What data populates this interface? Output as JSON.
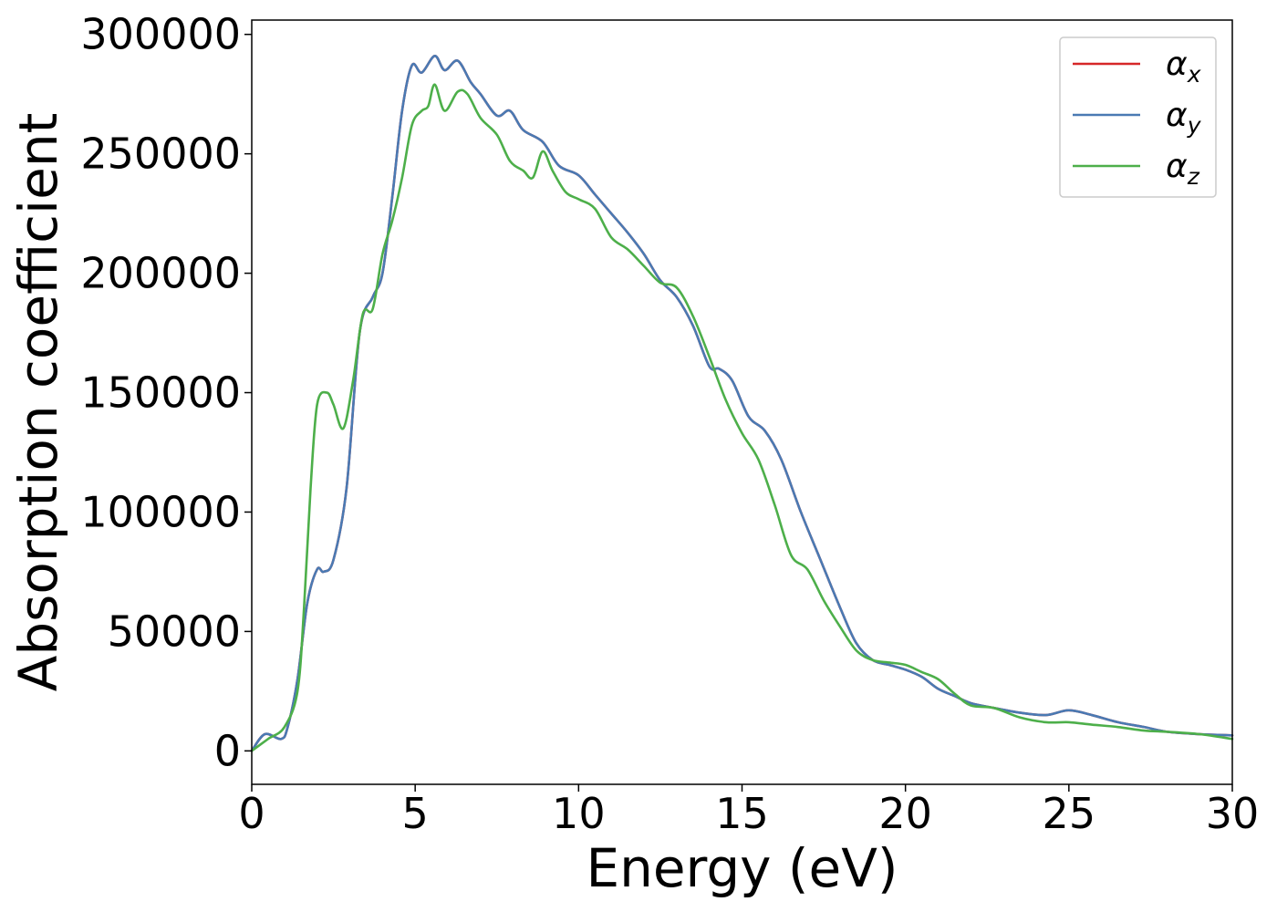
{
  "chart_data": {
    "type": "line",
    "xlabel": "Energy (eV)",
    "ylabel": "Absorption coefficient",
    "xlim": [
      0,
      30
    ],
    "ylim": [
      -14000,
      306000
    ],
    "xticks": [
      0,
      5,
      10,
      15,
      20,
      25,
      30
    ],
    "yticks": [
      0,
      50000,
      100000,
      150000,
      200000,
      250000,
      300000
    ],
    "grid": false,
    "legend_position": "top-right",
    "series": [
      {
        "name": "α",
        "sub": "x",
        "color": "#d62728",
        "x": [
          0,
          0.4,
          0.9,
          1.1,
          1.4,
          1.7,
          2.0,
          2.2,
          2.5,
          2.9,
          3.3,
          3.7,
          4.0,
          4.3,
          4.6,
          4.9,
          5.2,
          5.6,
          5.9,
          6.3,
          6.7,
          7.0,
          7.5,
          7.9,
          8.3,
          8.9,
          9.4,
          10.0,
          10.5,
          11.0,
          11.5,
          12.0,
          12.5,
          13.0,
          13.5,
          14.0,
          14.3,
          14.7,
          15.2,
          15.7,
          16.2,
          16.8,
          17.4,
          18.0,
          18.5,
          19.0,
          19.5,
          20.0,
          20.5,
          21.0,
          21.5,
          22.0,
          22.7,
          23.5,
          24.3,
          25.0,
          25.7,
          26.5,
          27.3,
          28.0,
          29.0,
          30.0
        ],
        "y": [
          0,
          7000,
          5000,
          10000,
          30000,
          62000,
          76000,
          75000,
          80000,
          110000,
          175000,
          190000,
          200000,
          232000,
          268000,
          287000,
          284000,
          291000,
          285000,
          289000,
          280000,
          275000,
          266000,
          268000,
          260000,
          255000,
          245000,
          241000,
          233000,
          225000,
          217000,
          208000,
          197000,
          190000,
          178000,
          161000,
          160000,
          155000,
          140000,
          134000,
          122000,
          100000,
          80000,
          60000,
          45000,
          38000,
          36000,
          34000,
          31000,
          26000,
          23000,
          20000,
          18000,
          16000,
          15000,
          17000,
          15000,
          12000,
          10000,
          8000,
          7000,
          6500
        ]
      },
      {
        "name": "α",
        "sub": "y",
        "color": "#4a7ab3",
        "x": [
          0,
          0.4,
          0.9,
          1.1,
          1.4,
          1.7,
          2.0,
          2.2,
          2.5,
          2.9,
          3.3,
          3.7,
          4.0,
          4.3,
          4.6,
          4.9,
          5.2,
          5.6,
          5.9,
          6.3,
          6.7,
          7.0,
          7.5,
          7.9,
          8.3,
          8.9,
          9.4,
          10.0,
          10.5,
          11.0,
          11.5,
          12.0,
          12.5,
          13.0,
          13.5,
          14.0,
          14.3,
          14.7,
          15.2,
          15.7,
          16.2,
          16.8,
          17.4,
          18.0,
          18.5,
          19.0,
          19.5,
          20.0,
          20.5,
          21.0,
          21.5,
          22.0,
          22.7,
          23.5,
          24.3,
          25.0,
          25.7,
          26.5,
          27.3,
          28.0,
          29.0,
          30.0
        ],
        "y": [
          0,
          7000,
          5000,
          10000,
          30000,
          62000,
          76000,
          75000,
          80000,
          110000,
          175000,
          190000,
          200000,
          232000,
          268000,
          287000,
          284000,
          291000,
          285000,
          289000,
          280000,
          275000,
          266000,
          268000,
          260000,
          255000,
          245000,
          241000,
          233000,
          225000,
          217000,
          208000,
          197000,
          190000,
          178000,
          161000,
          160000,
          155000,
          140000,
          134000,
          122000,
          100000,
          80000,
          60000,
          45000,
          38000,
          36000,
          34000,
          31000,
          26000,
          23000,
          20000,
          18000,
          16000,
          15000,
          17000,
          15000,
          12000,
          10000,
          8000,
          7000,
          6500
        ]
      },
      {
        "name": "α",
        "sub": "z",
        "color": "#4daf4a",
        "x": [
          0,
          0.5,
          1.0,
          1.4,
          1.6,
          1.8,
          2.0,
          2.3,
          2.5,
          2.8,
          3.1,
          3.4,
          3.7,
          4.0,
          4.3,
          4.6,
          4.9,
          5.2,
          5.4,
          5.6,
          5.9,
          6.3,
          6.6,
          7.0,
          7.5,
          7.9,
          8.3,
          8.6,
          8.9,
          9.2,
          9.6,
          10.0,
          10.5,
          11.0,
          11.5,
          12.0,
          12.5,
          13.0,
          13.5,
          14.0,
          14.5,
          15.0,
          15.5,
          16.0,
          16.5,
          17.0,
          17.5,
          18.0,
          18.5,
          19.0,
          19.5,
          20.0,
          20.5,
          21.0,
          21.5,
          22.0,
          22.7,
          23.5,
          24.3,
          25.0,
          25.7,
          26.5,
          27.3,
          28.0,
          29.0,
          30.0
        ],
        "y": [
          0,
          5000,
          10000,
          25000,
          60000,
          110000,
          145000,
          150000,
          145000,
          135000,
          155000,
          183000,
          185000,
          208000,
          222000,
          240000,
          262000,
          268000,
          270000,
          279000,
          268000,
          276000,
          275000,
          265000,
          258000,
          247000,
          243000,
          240000,
          251000,
          243000,
          234000,
          231000,
          227000,
          215000,
          210000,
          203000,
          196000,
          194000,
          182000,
          165000,
          147000,
          133000,
          122000,
          103000,
          82000,
          76000,
          63000,
          52000,
          42000,
          38000,
          37000,
          36000,
          33000,
          30000,
          24000,
          19000,
          18000,
          14000,
          12000,
          12000,
          11000,
          10000,
          8500,
          8000,
          7000,
          5000
        ]
      }
    ]
  }
}
